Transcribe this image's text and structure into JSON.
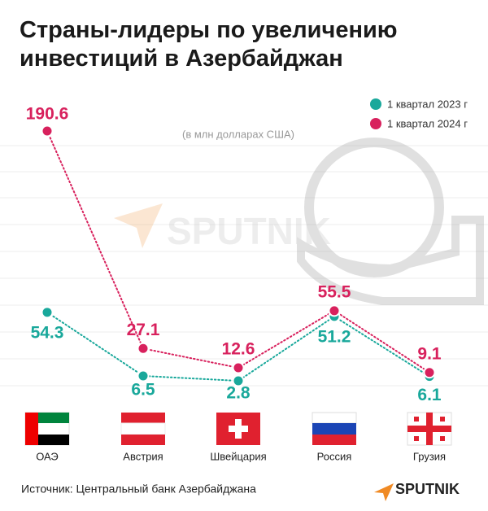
{
  "chart_data": {
    "type": "line",
    "title": "Страны-лидеры по увеличению инвестиций в Азербайджан",
    "subtitle": "(в млн долларах США)",
    "categories": [
      "ОАЭ",
      "Австрия",
      "Швейцария",
      "Россия",
      "Грузия"
    ],
    "series": [
      {
        "name": "1 квартал 2023 г",
        "color": "#19a89b",
        "values": [
          54.3,
          6.5,
          2.8,
          51.2,
          6.1
        ]
      },
      {
        "name": "1 квартал 2024 г",
        "color": "#d8215d",
        "values": [
          190.6,
          27.1,
          12.6,
          55.5,
          9.1
        ]
      }
    ],
    "ylim": [
      0,
      200
    ],
    "legend": "top-right",
    "source": "Источник: Центральный банк Азербайджана",
    "logo": "SPUTNIK"
  }
}
